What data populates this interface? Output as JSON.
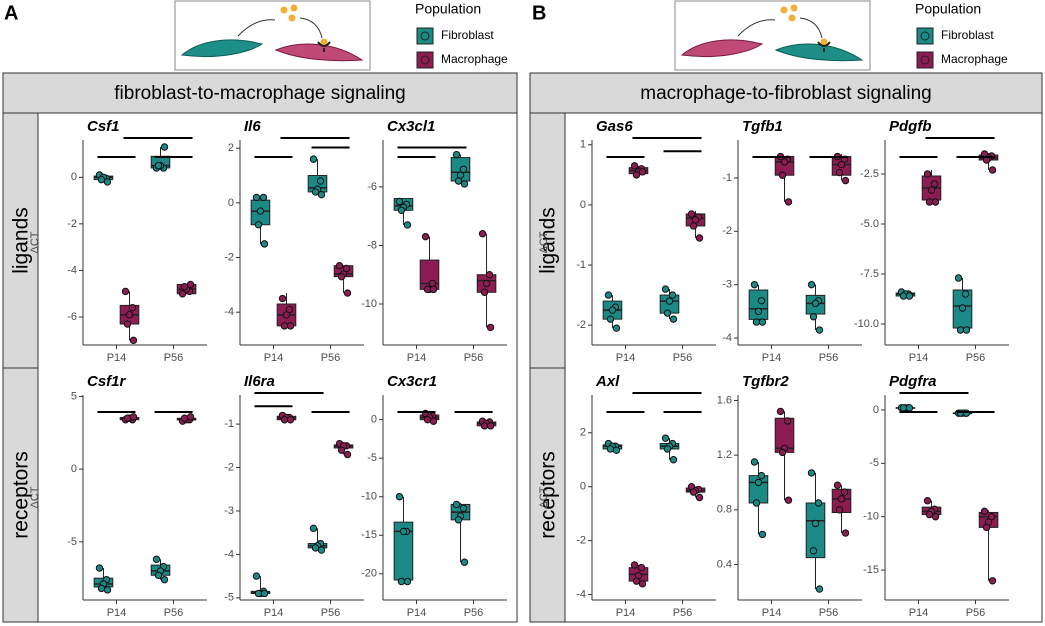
{
  "figure": {
    "letters": [
      "A",
      "B"
    ],
    "strips": [
      "fibroblast-to-macrophage signaling",
      "macrophage-to-fibroblast signaling"
    ],
    "rows": [
      "ligands",
      "receptors"
    ],
    "legend_title": "Population"
  },
  "chart_data": [
    {
      "type": "box",
      "title": "Csf1",
      "y_label": "ΔCT",
      "categories": [
        "P14",
        "P56"
      ],
      "ylim": [
        -7.2,
        1.6
      ],
      "yticks": [
        0,
        -2,
        -4,
        -6
      ],
      "series": [
        {
          "name": "Fibroblast",
          "color": "#1b8a87",
          "values": [
            [
              -0.2,
              -0.1,
              0,
              0.05,
              0.1
            ],
            [
              0.4,
              0.4,
              0.5,
              0.9,
              1.3
            ]
          ],
          "points": [
            [
              0.1,
              -0.05,
              0,
              -0.1,
              -0.2
            ],
            [
              0.4,
              0.4,
              0.5,
              0.5,
              1.3
            ]
          ]
        },
        {
          "name": "Macrophage",
          "color": "#8c1c52",
          "values": [
            [
              -7,
              -6.3,
              -5.9,
              -5.5,
              -4.9
            ],
            [
              -5,
              -5,
              -4.8,
              -4.6,
              -4.6
            ]
          ],
          "points": [
            [
              -4.9,
              -5.6,
              -5.9,
              -6.3,
              -7
            ],
            [
              -5,
              -4.9,
              -4.8,
              -4.7,
              -4.6
            ]
          ]
        }
      ]
    },
    {
      "type": "box",
      "title": "Il6",
      "categories": [
        "P14",
        "P56"
      ],
      "ylim": [
        -5.2,
        2.3
      ],
      "yticks": [
        2,
        0,
        -2,
        -4
      ],
      "series": [
        {
          "color": "#1b8a87",
          "values": [
            [
              -1.5,
              -0.8,
              -0.3,
              0.1,
              0.2
            ],
            [
              0.3,
              0.4,
              0.55,
              1,
              1.6
            ]
          ],
          "points": [
            [
              0.2,
              0.2,
              -0.3,
              -0.8,
              -1.5
            ],
            [
              1.6,
              0.8,
              0.5,
              0.4,
              0.3
            ]
          ]
        },
        {
          "color": "#8c1c52",
          "values": [
            [
              -4.5,
              -4.5,
              -4.1,
              -3.7,
              -3.3
            ],
            [
              -3.3,
              -2.7,
              -2.6,
              -2.3,
              -2.3
            ]
          ],
          "points": [
            [
              -3.5,
              -3.9,
              -4.1,
              -4.5,
              -4.5
            ],
            [
              -2.3,
              -2.4,
              -2.6,
              -2.7,
              -3.3
            ]
          ]
        }
      ]
    },
    {
      "type": "box",
      "title": "Cx3cl1",
      "categories": [
        "P14",
        "P56"
      ],
      "ylim": [
        -11.4,
        -4.4
      ],
      "yticks": [
        -6,
        -8,
        -10
      ],
      "series": [
        {
          "color": "#1b8a87",
          "values": [
            [
              -7.3,
              -6.8,
              -6.65,
              -6.4,
              -6.4
            ],
            [
              -5.9,
              -5.8,
              -5.5,
              -5,
              -4.9
            ]
          ],
          "points": [
            [
              -6.5,
              -6.6,
              -6.7,
              -6.8,
              -7.3
            ],
            [
              -4.9,
              -5.4,
              -5.6,
              -5.8,
              -5.9
            ]
          ]
        },
        {
          "color": "#8c1c52",
          "values": [
            [
              -9.6,
              -9.5,
              -9.3,
              -8.5,
              -7.7
            ],
            [
              -10.8,
              -9.6,
              -9.2,
              -9,
              -7.6
            ]
          ],
          "points": [
            [
              -7.7,
              -9.3,
              -9.5,
              -9.5,
              -9.5
            ],
            [
              -7.6,
              -9,
              -9.3,
              -9.6,
              -10.8
            ]
          ]
        }
      ]
    },
    {
      "type": "box",
      "title": "Csf1r",
      "y_label": "ΔCT",
      "categories": [
        "P14",
        "P56"
      ],
      "ylim": [
        -9,
        5.1
      ],
      "yticks": [
        5,
        0,
        -5
      ],
      "series": [
        {
          "color": "#1b8a87",
          "values": [
            [
              -8.3,
              -8.1,
              -7.9,
              -7.5,
              -6.8
            ],
            [
              -7.6,
              -7.3,
              -7,
              -6.6,
              -6.2
            ]
          ],
          "points": [
            [
              -6.8,
              -7.6,
              -7.9,
              -8.2,
              -8.3
            ],
            [
              -6.2,
              -6.7,
              -7,
              -7.3,
              -7.6
            ]
          ]
        },
        {
          "color": "#8c1c52",
          "values": [
            [
              3.4,
              3.4,
              3.5,
              3.55,
              3.6
            ],
            [
              3.3,
              3.4,
              3.4,
              3.5,
              3.6
            ]
          ],
          "points": [
            [
              3.4,
              3.4,
              3.5,
              3.5,
              3.6
            ],
            [
              3.3,
              3.4,
              3.4,
              3.5,
              3.6
            ]
          ]
        }
      ]
    },
    {
      "type": "box",
      "title": "Il6ra",
      "categories": [
        "P14",
        "P56"
      ],
      "ylim": [
        -5.05,
        -0.33
      ],
      "yticks": [
        -1,
        -2,
        -3,
        -4,
        -5
      ],
      "series": [
        {
          "color": "#1b8a87",
          "values": [
            [
              -4.95,
              -4.9,
              -4.88,
              -4.85,
              -4.5
            ],
            [
              -3.9,
              -3.85,
              -3.8,
              -3.75,
              -3.4
            ]
          ],
          "points": [
            [
              -4.5,
              -4.85,
              -4.9,
              -4.9,
              -4.9
            ],
            [
              -3.4,
              -3.75,
              -3.8,
              -3.85,
              -3.9
            ]
          ]
        },
        {
          "color": "#8c1c52",
          "values": [
            [
              -0.92,
              -0.9,
              -0.86,
              -0.82,
              -0.8
            ],
            [
              -1.7,
              -1.55,
              -1.5,
              -1.48,
              -1.45
            ]
          ],
          "points": [
            [
              -0.8,
              -0.85,
              -0.85,
              -0.9,
              -0.9
            ],
            [
              -1.45,
              -1.5,
              -1.5,
              -1.6,
              -1.7
            ]
          ]
        }
      ]
    },
    {
      "type": "box",
      "title": "Cx3cr1",
      "categories": [
        "P14",
        "P56"
      ],
      "ylim": [
        -23.4,
        3.2
      ],
      "yticks": [
        0,
        -5,
        -10,
        -15,
        -20
      ],
      "series": [
        {
          "color": "#1b8a87",
          "values": [
            [
              -21,
              -20.8,
              -14.5,
              -13.3,
              -10
            ],
            [
              -18.5,
              -13,
              -12,
              -11,
              -10.8
            ]
          ],
          "points": [
            [
              -10,
              -14.5,
              -14.5,
              -21,
              -21
            ],
            [
              -11,
              -11.5,
              -12.5,
              -13,
              -18.5
            ]
          ]
        },
        {
          "color": "#8c1c52",
          "values": [
            [
              -0.2,
              0,
              0.3,
              0.6,
              0.8
            ],
            [
              -0.9,
              -0.8,
              -0.5,
              -0.3,
              -0.1
            ]
          ],
          "points": [
            [
              0.8,
              0.5,
              0.3,
              0,
              -0.2
            ],
            [
              -0.2,
              -0.3,
              -0.5,
              -0.8,
              -0.8
            ]
          ]
        }
      ]
    },
    {
      "type": "box",
      "title": "Gas6",
      "y_label": "ΔCT",
      "categories": [
        "P14",
        "P56"
      ],
      "ylim": [
        -2.33,
        1.08
      ],
      "yticks": [
        1,
        0,
        -1,
        -2
      ],
      "series": [
        {
          "name": "Fibroblast",
          "color": "#1b8a87",
          "values": [
            [
              -2.05,
              -1.9,
              -1.75,
              -1.6,
              -1.5
            ],
            [
              -1.9,
              -1.8,
              -1.6,
              -1.5,
              -1.4
            ]
          ],
          "points": [
            [
              -1.5,
              -1.7,
              -1.75,
              -1.9,
              -2.05
            ],
            [
              -1.4,
              -1.5,
              -1.6,
              -1.8,
              -1.9
            ]
          ]
        },
        {
          "name": "Macrophage",
          "color": "#8c1c52",
          "values": [
            [
              0.5,
              0.52,
              0.57,
              0.62,
              0.65
            ],
            [
              -0.55,
              -0.35,
              -0.22,
              -0.15,
              -0.1
            ]
          ],
          "points": [
            [
              0.65,
              0.6,
              0.55,
              0.5,
              0.55
            ],
            [
              -0.15,
              -0.2,
              -0.25,
              -0.35,
              -0.55
            ]
          ]
        }
      ]
    },
    {
      "type": "box",
      "title": "Tgfb1",
      "categories": [
        "P14",
        "P56"
      ],
      "ylim": [
        -4.13,
        -0.29
      ],
      "yticks": [
        -1,
        -2,
        -3,
        -4
      ],
      "series": [
        {
          "color": "#1b8a87",
          "values": [
            [
              -3.7,
              -3.65,
              -3.45,
              -3.1,
              -3
            ],
            [
              -3.85,
              -3.55,
              -3.35,
              -3.2,
              -3
            ]
          ],
          "points": [
            [
              -3,
              -3.3,
              -3.5,
              -3.7,
              -3.7
            ],
            [
              -3,
              -3.3,
              -3.35,
              -3.6,
              -3.85
            ]
          ]
        },
        {
          "color": "#8c1c52",
          "values": [
            [
              -1.45,
              -0.95,
              -0.7,
              -0.6,
              -0.6
            ],
            [
              -1.05,
              -0.95,
              -0.75,
              -0.6,
              -0.55
            ]
          ],
          "points": [
            [
              -0.6,
              -0.65,
              -0.7,
              -0.95,
              -1.45
            ],
            [
              -0.6,
              -0.65,
              -0.75,
              -0.9,
              -1.05
            ]
          ]
        }
      ]
    },
    {
      "type": "box",
      "title": "Pdgfb",
      "categories": [
        "P14",
        "P56"
      ],
      "ylim": [
        -11.05,
        -0.8
      ],
      "yticks": [
        -2.5,
        {
          "value": -5,
          "label": "-5.0"
        },
        -7.5,
        {
          "value": -10,
          "label": "-10.0"
        }
      ],
      "series": [
        {
          "color": "#1b8a87",
          "values": [
            [
              -8.7,
              -8.6,
              -8.5,
              -8.45,
              -8.4
            ],
            [
              -10.4,
              -10.2,
              -9.1,
              -8.3,
              -7.7
            ]
          ],
          "points": [
            [
              -8.4,
              -8.5,
              -8.5,
              -8.6,
              -8.6
            ],
            [
              -7.7,
              -8.5,
              -9.2,
              -10.3,
              -10.3
            ]
          ]
        },
        {
          "color": "#8c1c52",
          "values": [
            [
              -3.9,
              -3.8,
              -3.2,
              -2.6,
              -2.3
            ],
            [
              -2.3,
              -1.8,
              -1.7,
              -1.55,
              -1.45
            ]
          ],
          "points": [
            [
              -2.5,
              -3,
              -3.3,
              -3.9,
              -3.9
            ],
            [
              -1.5,
              -1.6,
              -1.7,
              -1.8,
              -2.3
            ]
          ]
        }
      ]
    },
    {
      "type": "box",
      "title": "Axl",
      "y_label": "ΔCT",
      "categories": [
        "P14",
        "P56"
      ],
      "ylim": [
        -4.2,
        3.4
      ],
      "yticks": [
        2,
        0,
        -2,
        -4
      ],
      "series": [
        {
          "color": "#1b8a87",
          "values": [
            [
              1.35,
              1.4,
              1.5,
              1.55,
              1.6
            ],
            [
              1,
              1.4,
              1.5,
              1.6,
              1.8
            ]
          ],
          "points": [
            [
              1.6,
              1.5,
              1.5,
              1.4,
              1.35
            ],
            [
              1.8,
              1.6,
              1.5,
              1.4,
              1
            ]
          ]
        },
        {
          "color": "#8c1c52",
          "values": [
            [
              -3.6,
              -3.5,
              -3.25,
              -3,
              -2.9
            ],
            [
              -0.4,
              -0.2,
              -0.15,
              -0.05,
              0
            ]
          ],
          "points": [
            [
              -2.9,
              -3,
              -3.3,
              -3.5,
              -3.6
            ],
            [
              0,
              -0.1,
              -0.15,
              -0.2,
              -0.4
            ]
          ]
        }
      ]
    },
    {
      "type": "box",
      "title": "Tgfbr2",
      "categories": [
        "P14",
        "P56"
      ],
      "ylim": [
        0.14,
        1.64
      ],
      "yticks": [
        1.6,
        1.2,
        0.8,
        0.4
      ],
      "series": [
        {
          "color": "#1b8a87",
          "values": [
            [
              0.62,
              0.85,
              1,
              1.05,
              1.15
            ],
            [
              0.22,
              0.45,
              0.72,
              0.85,
              1.07
            ]
          ],
          "points": [
            [
              1.15,
              1.05,
              1,
              0.85,
              0.62
            ],
            [
              1.07,
              0.85,
              0.7,
              0.5,
              0.22
            ]
          ]
        },
        {
          "color": "#8c1c52",
          "values": [
            [
              0.87,
              1.22,
              1.25,
              1.47,
              1.52
            ],
            [
              0.63,
              0.78,
              0.88,
              0.95,
              0.98
            ]
          ],
          "points": [
            [
              1.52,
              1.45,
              1.25,
              1.22,
              0.87
            ],
            [
              0.98,
              0.93,
              0.88,
              0.8,
              0.63
            ]
          ]
        }
      ]
    },
    {
      "type": "box",
      "title": "Pdgfra",
      "categories": [
        "P14",
        "P56"
      ],
      "ylim": [
        -17.8,
        1.4
      ],
      "yticks": [
        0,
        -5,
        -10,
        -15
      ],
      "series": [
        {
          "color": "#1b8a87",
          "values": [
            [
              0.2,
              0.2,
              0.2,
              0.2,
              0.2
            ],
            [
              -0.3,
              -0.3,
              -0.3,
              -0.3,
              -0.3
            ]
          ],
          "points": [
            [
              0.2,
              0.2,
              0.2,
              0.2,
              0.2
            ],
            [
              -0.3,
              -0.3,
              -0.3,
              -0.3,
              -0.3
            ]
          ]
        },
        {
          "color": "#8c1c52",
          "values": [
            [
              -10,
              -9.8,
              -9.5,
              -9.1,
              -8.5
            ],
            [
              -16,
              -11,
              -10,
              -9.6,
              -9.4
            ]
          ],
          "points": [
            [
              -8.5,
              -9.3,
              -9.5,
              -9.8,
              -10
            ],
            [
              -9.5,
              -10,
              -10.5,
              -11,
              -16
            ]
          ]
        }
      ]
    }
  ]
}
